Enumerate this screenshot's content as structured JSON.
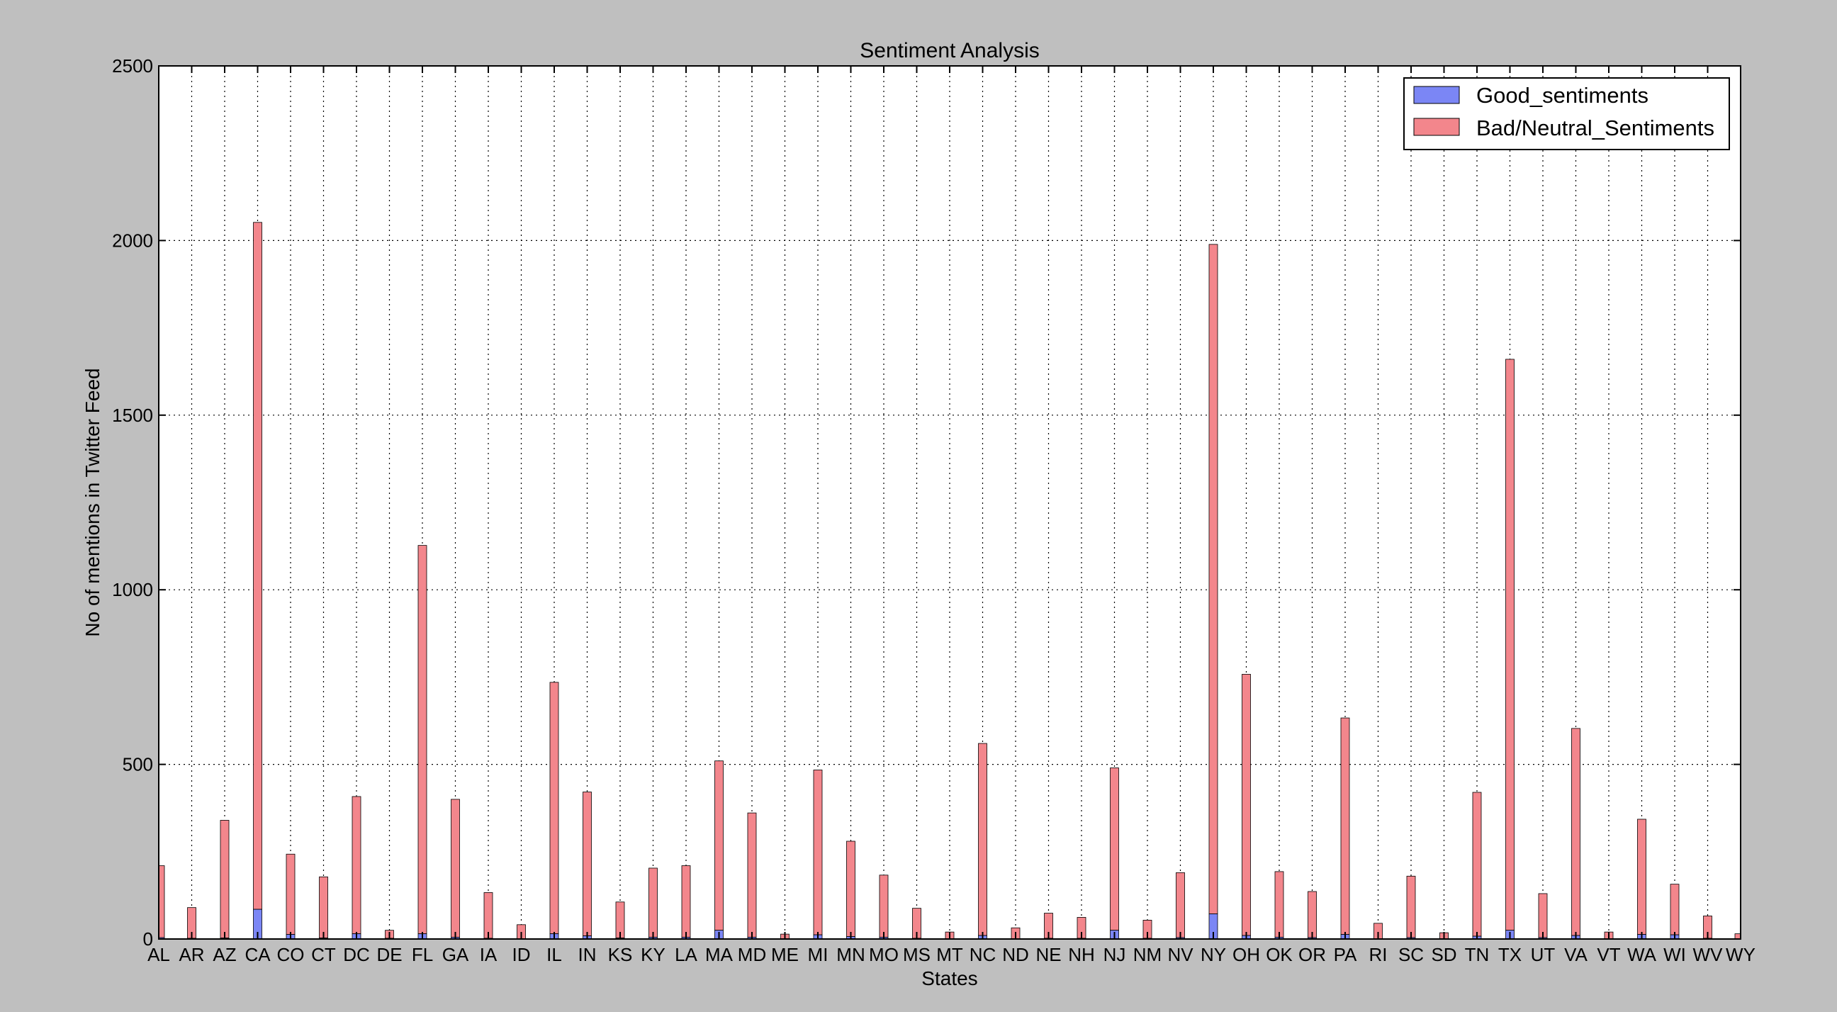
{
  "chart_data": {
    "type": "bar",
    "stacked": true,
    "title": "Sentiment Analysis",
    "xlabel": "States",
    "ylabel": "No of mentions in Twitter Feed",
    "ylim": [
      0,
      2500
    ],
    "yticks": [
      0,
      500,
      1000,
      1500,
      2000,
      2500
    ],
    "grid": true,
    "legend_position": "top-right",
    "categories": [
      "AL",
      "AR",
      "AZ",
      "CA",
      "CO",
      "CT",
      "DC",
      "DE",
      "FL",
      "GA",
      "IA",
      "ID",
      "IL",
      "IN",
      "KS",
      "KY",
      "LA",
      "MA",
      "MD",
      "ME",
      "MI",
      "MN",
      "MO",
      "MS",
      "MT",
      "NC",
      "ND",
      "NE",
      "NH",
      "NJ",
      "NM",
      "NV",
      "NY",
      "OH",
      "OK",
      "OR",
      "PA",
      "RI",
      "SC",
      "SD",
      "TN",
      "TX",
      "UT",
      "VA",
      "VT",
      "WA",
      "WI",
      "WV",
      "WY"
    ],
    "series": [
      {
        "name": "Good_sentiments",
        "color": "#7b86f5",
        "values": [
          4,
          2,
          3,
          85,
          13,
          3,
          15,
          2,
          15,
          5,
          2,
          1,
          15,
          9,
          3,
          5,
          5,
          25,
          5,
          1,
          12,
          7,
          5,
          2,
          1,
          10,
          1,
          2,
          2,
          25,
          2,
          4,
          72,
          10,
          5,
          4,
          13,
          1,
          4,
          1,
          8,
          25,
          4,
          10,
          1,
          13,
          12,
          2,
          1
        ]
      },
      {
        "name": "Bad/Neutral_Sentiments",
        "color": "#f3868c",
        "values": [
          206,
          88,
          337,
          1967,
          230,
          175,
          393,
          23,
          1112,
          395,
          131,
          40,
          720,
          412,
          103,
          198,
          205,
          485,
          356,
          13,
          472,
          273,
          178,
          86,
          19,
          550,
          31,
          72,
          60,
          465,
          52,
          186,
          1917,
          748,
          188,
          132,
          620,
          44,
          176,
          17,
          412,
          1635,
          126,
          593,
          19,
          330,
          145,
          64,
          14
        ]
      }
    ]
  }
}
